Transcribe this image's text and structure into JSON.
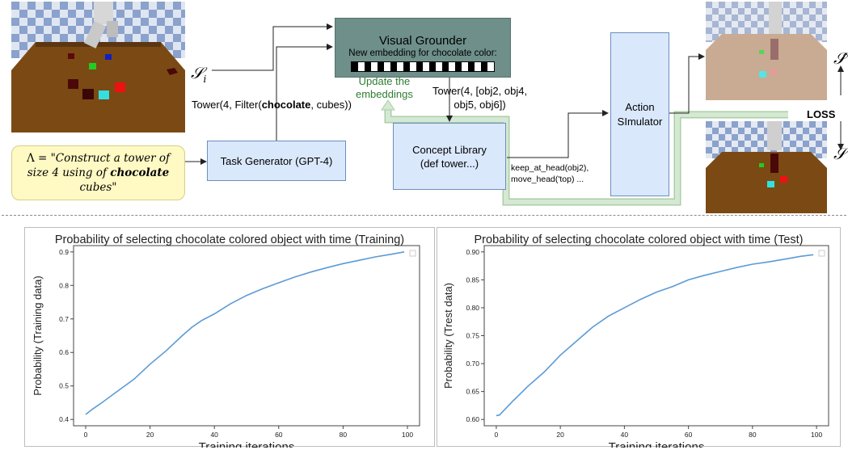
{
  "top": {
    "state_input_label": "𝒮",
    "state_input_sub": "i",
    "output_label_top": "𝒮̂",
    "output_label_bottom": "𝒮",
    "loss_label": "LOSS",
    "task_instruction": {
      "lambda": "Λ",
      "prefix": " = \"Construct a tower of size 4 using of ",
      "bold": "chocolate",
      "suffix": " cubes\""
    },
    "task_generator": "Task Generator (GPT-4)",
    "program_text_prefix": "Tower(4, Filter(",
    "program_text_bold": "chocolate",
    "program_text_suffix": ", cubes))",
    "visual_grounder": {
      "title": "Visual Grounder",
      "subtitle": "New embedding for chocolate color:"
    },
    "update_label_line1": "Update the",
    "update_label_line2": "embeddings",
    "tower_output_line1": "Tower(4, [obj2, obj4,",
    "tower_output_line2": "obj5, obj6])",
    "concept_library": {
      "line1": "Concept Library",
      "line2": "(def tower...)"
    },
    "actions_line1": "keep_at_head(obj2),",
    "actions_line2": "move_head('top) ...",
    "action_simulator": {
      "line1": "Action",
      "line2": "SImulator"
    },
    "colors": {
      "grounder_fill": "#6e8f8a",
      "blue_box_fill": "#dae8fc",
      "blue_box_border": "#6c8ebf",
      "yellow_fill": "#fff9c4",
      "green_arrow": "#d5e8d4",
      "green_text": "#2e7d32",
      "plot_line": "#5b9bd5"
    }
  },
  "chart_data": [
    {
      "type": "line",
      "title": "Probability of selecting chocolate colored object with time (Training)",
      "xlabel": "Training iterations",
      "ylabel": "Probability (Training data)",
      "xlim": [
        0,
        100
      ],
      "ylim": [
        0.4,
        0.9
      ],
      "xticks": [
        0,
        20,
        40,
        60,
        80,
        100
      ],
      "yticks": [
        0.4,
        0.5,
        0.6,
        0.7,
        0.8,
        0.9
      ],
      "x": [
        0,
        2,
        5,
        10,
        15,
        20,
        25,
        30,
        33,
        36,
        40,
        45,
        50,
        55,
        60,
        65,
        70,
        75,
        80,
        85,
        90,
        95,
        99
      ],
      "y": [
        0.415,
        0.43,
        0.45,
        0.485,
        0.52,
        0.565,
        0.605,
        0.65,
        0.675,
        0.695,
        0.715,
        0.745,
        0.77,
        0.79,
        0.808,
        0.825,
        0.84,
        0.853,
        0.865,
        0.875,
        0.885,
        0.893,
        0.9
      ]
    },
    {
      "type": "line",
      "title": "Probability of selecting chocolate colored object with time (Test)",
      "xlabel": "Training iterations",
      "ylabel": "Probability (Trest data)",
      "xlim": [
        0,
        100
      ],
      "ylim": [
        0.6,
        0.9
      ],
      "xticks": [
        0,
        20,
        40,
        60,
        80,
        100
      ],
      "yticks": [
        0.6,
        0.65,
        0.7,
        0.75,
        0.8,
        0.85,
        0.9
      ],
      "x": [
        0,
        1,
        3,
        5,
        10,
        15,
        20,
        25,
        30,
        35,
        40,
        45,
        50,
        55,
        60,
        65,
        70,
        75,
        80,
        85,
        90,
        95,
        99
      ],
      "y": [
        0.607,
        0.608,
        0.62,
        0.632,
        0.66,
        0.685,
        0.715,
        0.74,
        0.765,
        0.785,
        0.8,
        0.815,
        0.828,
        0.838,
        0.85,
        0.858,
        0.865,
        0.872,
        0.878,
        0.882,
        0.887,
        0.892,
        0.895
      ]
    }
  ]
}
